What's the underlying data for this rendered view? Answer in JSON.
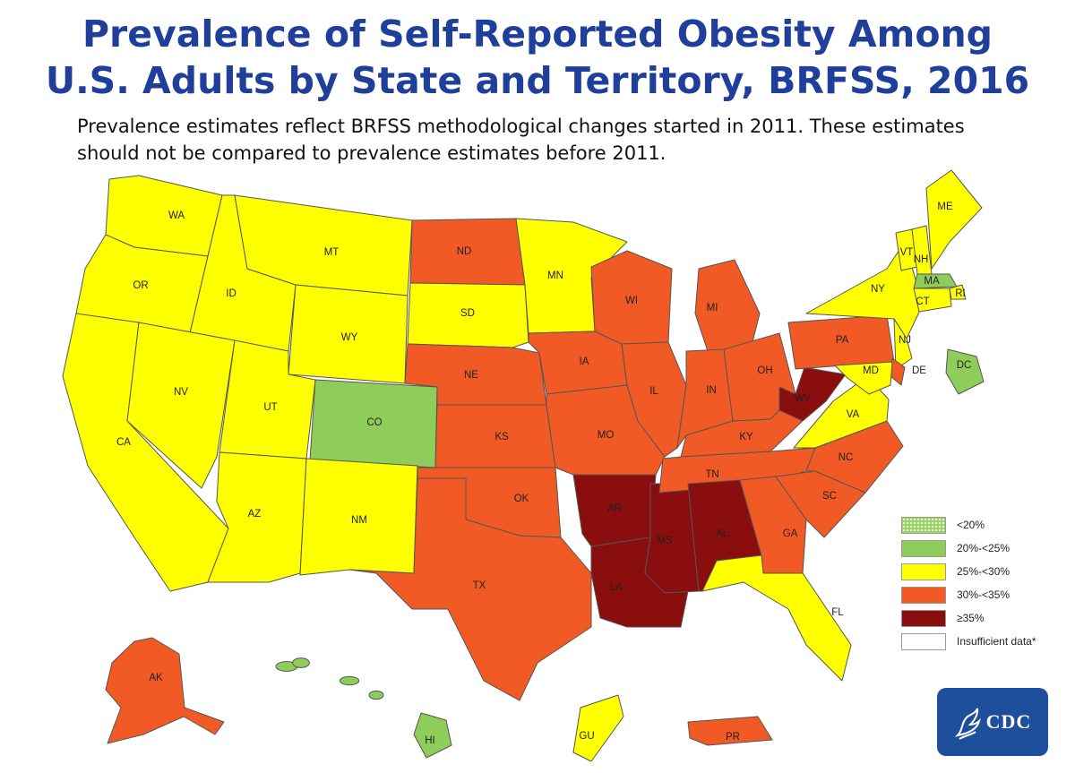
{
  "title": {
    "line1": "Prevalence of Self-Reported Obesity Among",
    "line2": "U.S. Adults by State and Territory, BRFSS, 2016"
  },
  "subtitle": {
    "line1": "Prevalence estimates reflect BRFSS methodological changes started in 2011. These estimates",
    "line2": "should not be compared to prevalence estimates before 2011."
  },
  "legend": [
    {
      "label": "<20%",
      "color": "#9ed36a",
      "pattern": "dotted"
    },
    {
      "label": "20%-<25%",
      "color": "#8fcd5b"
    },
    {
      "label": "25%-<30%",
      "color": "#ffff00"
    },
    {
      "label": "30%-<35%",
      "color": "#f15a24"
    },
    {
      "label": "≥35%",
      "color": "#8b0e0e"
    },
    {
      "label": "Insufficient data*",
      "color": "#ffffff"
    }
  ],
  "logo": {
    "text": "CDC"
  },
  "states": {
    "WA": "25%-<30%",
    "OR": "25%-<30%",
    "CA": "25%-<30%",
    "ID": "25%-<30%",
    "NV": "25%-<30%",
    "MT": "25%-<30%",
    "WY": "25%-<30%",
    "UT": "25%-<30%",
    "AZ": "25%-<30%",
    "CO": "20%-<25%",
    "NM": "25%-<30%",
    "ND": "30%-<35%",
    "SD": "25%-<30%",
    "NE": "30%-<35%",
    "KS": "30%-<35%",
    "OK": "30%-<35%",
    "TX": "30%-<35%",
    "MN": "25%-<30%",
    "IA": "30%-<35%",
    "MO": "30%-<35%",
    "AR": "≥35%",
    "LA": "≥35%",
    "WI": "30%-<35%",
    "IL": "30%-<35%",
    "MS": "≥35%",
    "MI": "30%-<35%",
    "IN": "30%-<35%",
    "OH": "30%-<35%",
    "KY": "30%-<35%",
    "TN": "30%-<35%",
    "AL": "≥35%",
    "GA": "30%-<35%",
    "FL": "25%-<30%",
    "SC": "30%-<35%",
    "NC": "30%-<35%",
    "VA": "25%-<30%",
    "WV": "≥35%",
    "PA": "30%-<35%",
    "NY": "25%-<30%",
    "VT": "25%-<30%",
    "NH": "25%-<30%",
    "ME": "25%-<30%",
    "MA": "20%-<25%",
    "RI": "25%-<30%",
    "CT": "25%-<30%",
    "NJ": "25%-<30%",
    "DE": "30%-<35%",
    "MD": "25%-<30%",
    "DC": "20%-<25%",
    "AK": "30%-<35%",
    "HI": "20%-<25%",
    "GU": "25%-<30%",
    "PR": "30%-<35%"
  }
}
